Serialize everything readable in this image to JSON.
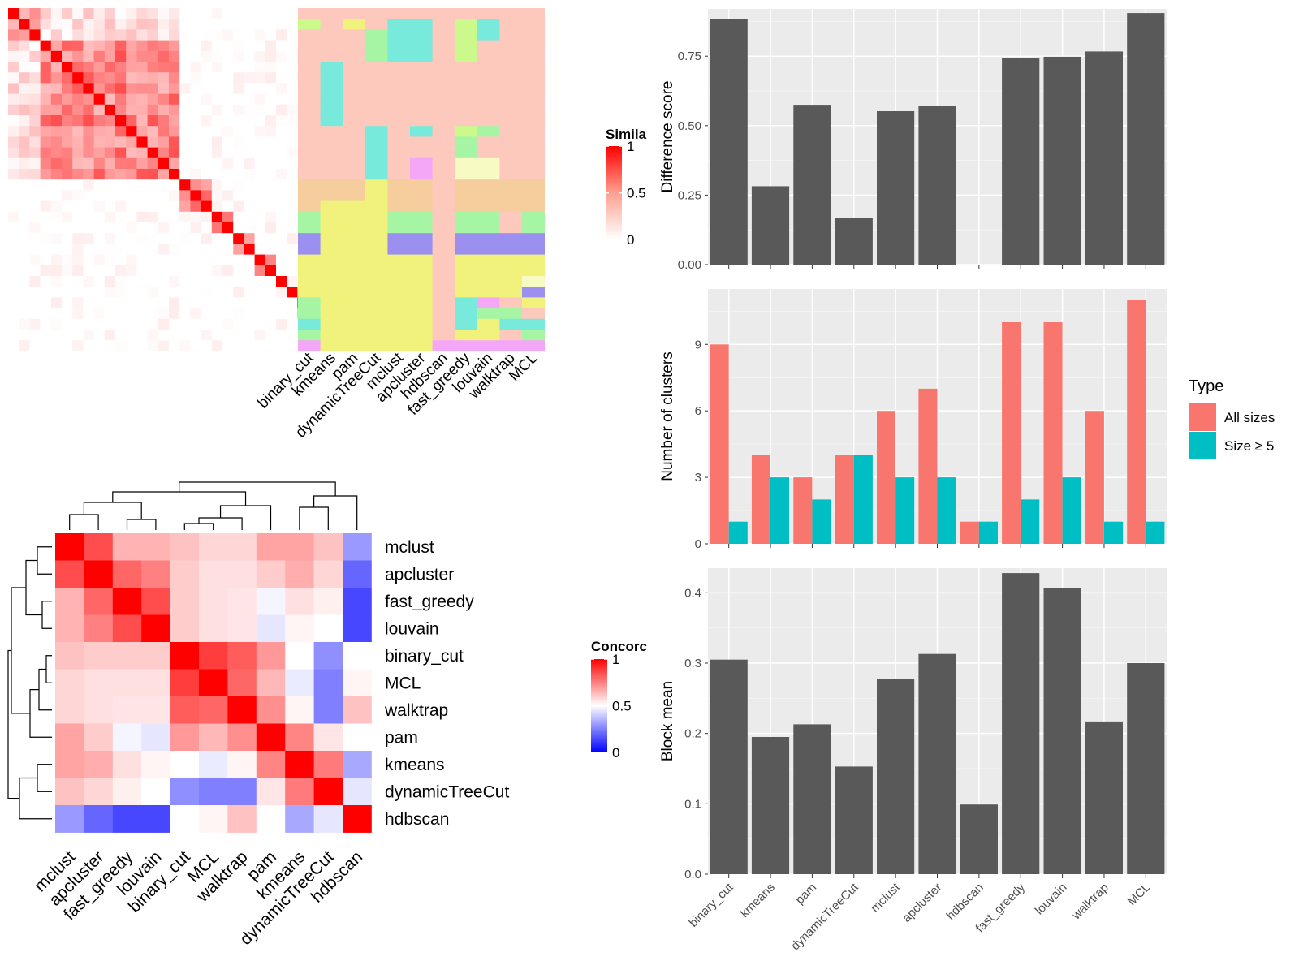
{
  "similarity_heatmap": {
    "legend_title": "Simila",
    "legend_ticks": [
      "1",
      "0.5",
      "0"
    ],
    "column_labels": [
      "binary_cut",
      "kmeans",
      "pam",
      "dynamicTreeCut",
      "mclust",
      "apcluster",
      "hdbscan",
      "fast_greedy",
      "louvain",
      "walktrap",
      "MCL"
    ],
    "n_terms": 32
  },
  "concordance_heatmap": {
    "legend_title": "Concorc",
    "legend_ticks": [
      "1",
      "0.5",
      "0"
    ],
    "row_labels": [
      "mclust",
      "apcluster",
      "fast_greedy",
      "louvain",
      "binary_cut",
      "MCL",
      "walktrap",
      "pam",
      "kmeans",
      "dynamicTreeCut",
      "hdbscan"
    ],
    "column_labels": [
      "mclust",
      "apcluster",
      "fast_greedy",
      "louvain",
      "binary_cut",
      "MCL",
      "walktrap",
      "pam",
      "kmeans",
      "dynamicTreeCut",
      "hdbscan"
    ],
    "matrix": [
      [
        1.0,
        0.85,
        0.65,
        0.65,
        0.62,
        0.58,
        0.58,
        0.68,
        0.68,
        0.62,
        0.3
      ],
      [
        0.85,
        1.0,
        0.8,
        0.75,
        0.6,
        0.56,
        0.56,
        0.6,
        0.66,
        0.58,
        0.2
      ],
      [
        0.65,
        0.8,
        1.0,
        0.85,
        0.6,
        0.56,
        0.55,
        0.48,
        0.56,
        0.53,
        0.14
      ],
      [
        0.65,
        0.75,
        0.85,
        1.0,
        0.6,
        0.56,
        0.55,
        0.45,
        0.52,
        0.5,
        0.14
      ],
      [
        0.62,
        0.6,
        0.6,
        0.6,
        1.0,
        0.88,
        0.82,
        0.7,
        0.5,
        0.28,
        0.5
      ],
      [
        0.58,
        0.56,
        0.56,
        0.56,
        0.88,
        1.0,
        0.8,
        0.64,
        0.46,
        0.25,
        0.52
      ],
      [
        0.58,
        0.56,
        0.55,
        0.55,
        0.82,
        0.8,
        1.0,
        0.72,
        0.52,
        0.25,
        0.62
      ],
      [
        0.68,
        0.6,
        0.48,
        0.45,
        0.7,
        0.64,
        0.72,
        1.0,
        0.74,
        0.55,
        0.5
      ],
      [
        0.68,
        0.66,
        0.56,
        0.52,
        0.5,
        0.46,
        0.52,
        0.74,
        1.0,
        0.76,
        0.33
      ],
      [
        0.62,
        0.58,
        0.53,
        0.5,
        0.28,
        0.25,
        0.25,
        0.55,
        0.76,
        1.0,
        0.45
      ],
      [
        0.3,
        0.2,
        0.14,
        0.14,
        0.5,
        0.52,
        0.62,
        0.5,
        0.33,
        0.45,
        1.0
      ]
    ]
  },
  "chart_data": [
    {
      "type": "bar",
      "xlabel": "",
      "ylabel": "Difference score",
      "categories": [
        "binary_cut",
        "kmeans",
        "pam",
        "dynamicTreeCut",
        "mclust",
        "apcluster",
        "hdbscan",
        "fast_greedy",
        "louvain",
        "walktrap",
        "MCL"
      ],
      "values": [
        0.885,
        0.282,
        0.575,
        0.167,
        0.552,
        0.571,
        0.0,
        0.743,
        0.748,
        0.767,
        0.905
      ],
      "ylim": [
        0,
        0.92
      ],
      "yticks": [
        "0.00",
        "0.25",
        "0.50",
        "0.75"
      ],
      "ytick_values": [
        0,
        0.25,
        0.5,
        0.75
      ],
      "grid": true,
      "bar_color": "#595959"
    },
    {
      "type": "bar",
      "xlabel": "",
      "ylabel": "Number of clusters",
      "categories": [
        "binary_cut",
        "kmeans",
        "pam",
        "dynamicTreeCut",
        "mclust",
        "apcluster",
        "hdbscan",
        "fast_greedy",
        "louvain",
        "walktrap",
        "MCL"
      ],
      "series": [
        {
          "name": "All sizes",
          "values": [
            9,
            4,
            3,
            4,
            6,
            7,
            1,
            10,
            10,
            6,
            11
          ],
          "color": "#F8766D"
        },
        {
          "name": "Size ≥ 5",
          "values": [
            1,
            3,
            2,
            4,
            3,
            3,
            1,
            2,
            3,
            1,
            1
          ],
          "color": "#00BFC4"
        }
      ],
      "ylim": [
        0,
        11.5
      ],
      "yticks": [
        "0",
        "3",
        "6",
        "9"
      ],
      "ytick_values": [
        0,
        3,
        6,
        9
      ],
      "legend_title": "Type",
      "legend_position": "right",
      "grid": true
    },
    {
      "type": "bar",
      "xlabel": "",
      "ylabel": "Block mean",
      "categories": [
        "binary_cut",
        "kmeans",
        "pam",
        "dynamicTreeCut",
        "mclust",
        "apcluster",
        "hdbscan",
        "fast_greedy",
        "louvain",
        "walktrap",
        "MCL"
      ],
      "values": [
        0.305,
        0.195,
        0.213,
        0.153,
        0.277,
        0.313,
        0.099,
        0.428,
        0.407,
        0.217,
        0.3
      ],
      "ylim": [
        0,
        0.435
      ],
      "yticks": [
        "0.0",
        "0.1",
        "0.2",
        "0.3",
        "0.4"
      ],
      "ytick_values": [
        0,
        0.1,
        0.2,
        0.3,
        0.4
      ],
      "grid": true,
      "bar_color": "#595959"
    }
  ]
}
